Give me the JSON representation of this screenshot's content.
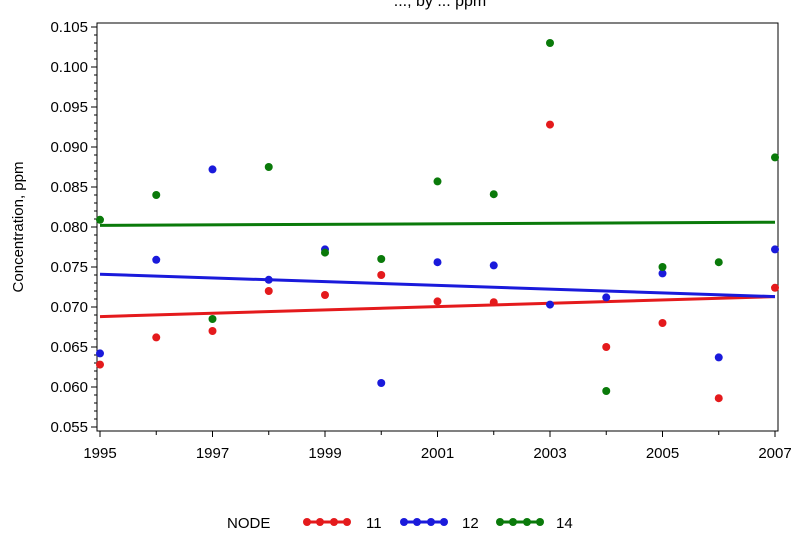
{
  "chart_data": {
    "type": "scatter",
    "title": "..., by ... ppm",
    "xlabel": "",
    "ylabel": "Concentration, ppm",
    "xlim": [
      1995,
      2007
    ],
    "ylim": [
      0.055,
      0.105
    ],
    "x_ticks": [
      "1995",
      "1997",
      "1999",
      "2001",
      "2003",
      "2005",
      "2007"
    ],
    "y_ticks": [
      "0.055",
      "0.060",
      "0.065",
      "0.070",
      "0.075",
      "0.080",
      "0.085",
      "0.090",
      "0.095",
      "0.100",
      "0.105"
    ],
    "grid": false,
    "legend": {
      "title": "NODE",
      "position": "bottom"
    },
    "x": [
      1995,
      1996,
      1997,
      1998,
      1999,
      2000,
      2001,
      2002,
      2003,
      2004,
      2005,
      2006,
      2007
    ],
    "series": [
      {
        "name": "11",
        "color": "#e41a1c",
        "values": [
          0.0628,
          0.0662,
          0.067,
          0.072,
          0.0715,
          0.074,
          0.0707,
          0.0706,
          0.0928,
          0.065,
          0.068,
          0.0586,
          0.0724
        ],
        "trend": [
          0.0688,
          0.0713
        ]
      },
      {
        "name": "12",
        "color": "#1a1adb",
        "values": [
          0.0642,
          0.0759,
          0.0872,
          0.0734,
          0.0772,
          0.0605,
          0.0756,
          0.0752,
          0.0703,
          0.0712,
          0.0742,
          0.0637,
          0.0772
        ],
        "trend": [
          0.0741,
          0.0713
        ]
      },
      {
        "name": "14",
        "color": "#0a7a0a",
        "values": [
          0.0809,
          0.084,
          0.0685,
          0.0875,
          0.0768,
          0.076,
          0.0857,
          0.0841,
          0.103,
          0.0595,
          0.075,
          0.0756,
          0.0887
        ],
        "trend": [
          0.0802,
          0.0806
        ]
      }
    ]
  }
}
